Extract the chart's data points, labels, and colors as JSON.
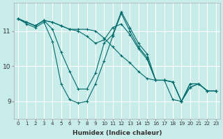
{
  "xlabel": "Humidex (Indice chaleur)",
  "ylabel": "",
  "background_color": "#c8ece9",
  "grid_color": "#ffffff",
  "line_color": "#006b6b",
  "x_ticks": [
    0,
    1,
    2,
    3,
    4,
    5,
    6,
    7,
    8,
    9,
    10,
    11,
    12,
    13,
    14,
    15,
    16,
    17,
    18,
    19,
    20,
    21,
    22,
    23
  ],
  "y_ticks": [
    9,
    10,
    11
  ],
  "ylim": [
    8.5,
    11.8
  ],
  "xlim": [
    -0.5,
    23.5
  ],
  "lines": [
    [
      11.35,
      11.25,
      11.15,
      11.3,
      11.25,
      11.15,
      11.05,
      11.05,
      11.05,
      11.0,
      10.8,
      10.55,
      10.3,
      10.1,
      9.85,
      9.65,
      9.6,
      9.6,
      9.55,
      9.0,
      9.5,
      9.5,
      9.3,
      9.3
    ],
    [
      11.35,
      11.25,
      11.15,
      11.3,
      11.25,
      11.15,
      11.05,
      11.0,
      10.85,
      10.65,
      10.75,
      11.1,
      11.2,
      10.9,
      10.5,
      10.2,
      9.6,
      9.6,
      9.55,
      9.0,
      9.5,
      9.5,
      9.3,
      9.3
    ],
    [
      11.35,
      11.25,
      11.15,
      11.3,
      11.05,
      10.4,
      9.85,
      9.35,
      9.35,
      9.8,
      10.65,
      10.9,
      11.55,
      11.1,
      10.65,
      10.35,
      9.6,
      9.6,
      9.55,
      9.0,
      9.4,
      9.5,
      9.3,
      9.3
    ],
    [
      11.35,
      11.2,
      11.1,
      11.25,
      10.7,
      9.5,
      9.05,
      8.95,
      9.0,
      9.5,
      10.15,
      10.85,
      11.5,
      11.0,
      10.55,
      10.25,
      9.6,
      9.6,
      9.05,
      9.0,
      9.4,
      9.5,
      9.3,
      9.3
    ]
  ]
}
